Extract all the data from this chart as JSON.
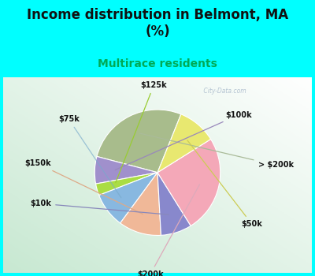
{
  "title": "Income distribution in Belmont, MA\n(%)",
  "subtitle": "Multirace residents",
  "bg_cyan": "#00FFFF",
  "labels": [
    "> $200k",
    "$100k",
    "$125k",
    "$75k",
    "$150k",
    "$10k",
    "$200k",
    "$50k"
  ],
  "sizes": [
    27,
    7,
    3,
    9,
    11,
    8,
    25,
    10
  ],
  "colors": [
    "#a8bc8c",
    "#a090cc",
    "#aadd44",
    "#88b8e0",
    "#f0b898",
    "#8888cc",
    "#f4a8b8",
    "#e8e870"
  ],
  "startangle": 68,
  "title_fontsize": 12,
  "subtitle_fontsize": 10,
  "label_fontsize": 7,
  "title_color": "#111111",
  "subtitle_color": "#00aa55",
  "label_color": "#111111",
  "watermark": " City-Data.com",
  "watermark_color": "#aabbcc"
}
